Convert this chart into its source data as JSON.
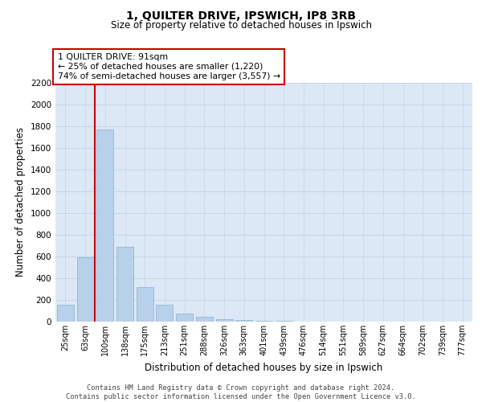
{
  "title": "1, QUILTER DRIVE, IPSWICH, IP8 3RB",
  "subtitle": "Size of property relative to detached houses in Ipswich",
  "xlabel": "Distribution of detached houses by size in Ipswich",
  "ylabel": "Number of detached properties",
  "categories": [
    "25sqm",
    "63sqm",
    "100sqm",
    "138sqm",
    "175sqm",
    "213sqm",
    "251sqm",
    "288sqm",
    "326sqm",
    "363sqm",
    "401sqm",
    "439sqm",
    "476sqm",
    "514sqm",
    "551sqm",
    "589sqm",
    "627sqm",
    "664sqm",
    "702sqm",
    "739sqm",
    "777sqm"
  ],
  "values": [
    155,
    590,
    1770,
    690,
    320,
    158,
    75,
    42,
    25,
    18,
    10,
    5,
    3,
    2,
    1,
    0,
    0,
    0,
    0,
    0,
    0
  ],
  "bar_color": "#b8d0ea",
  "bar_edge_color": "#8ab0d0",
  "highlight_color": "#cc0000",
  "annotation_text": "1 QUILTER DRIVE: 91sqm\n← 25% of detached houses are smaller (1,220)\n74% of semi-detached houses are larger (3,557) →",
  "annotation_box_color": "#ffffff",
  "annotation_box_edge": "#cc0000",
  "ylim": [
    0,
    2200
  ],
  "yticks": [
    0,
    200,
    400,
    600,
    800,
    1000,
    1200,
    1400,
    1600,
    1800,
    2000,
    2200
  ],
  "grid_color": "#c5d5e8",
  "plot_bg_color": "#dce8f5",
  "footer_line1": "Contains HM Land Registry data © Crown copyright and database right 2024.",
  "footer_line2": "Contains public sector information licensed under the Open Government Licence v3.0."
}
